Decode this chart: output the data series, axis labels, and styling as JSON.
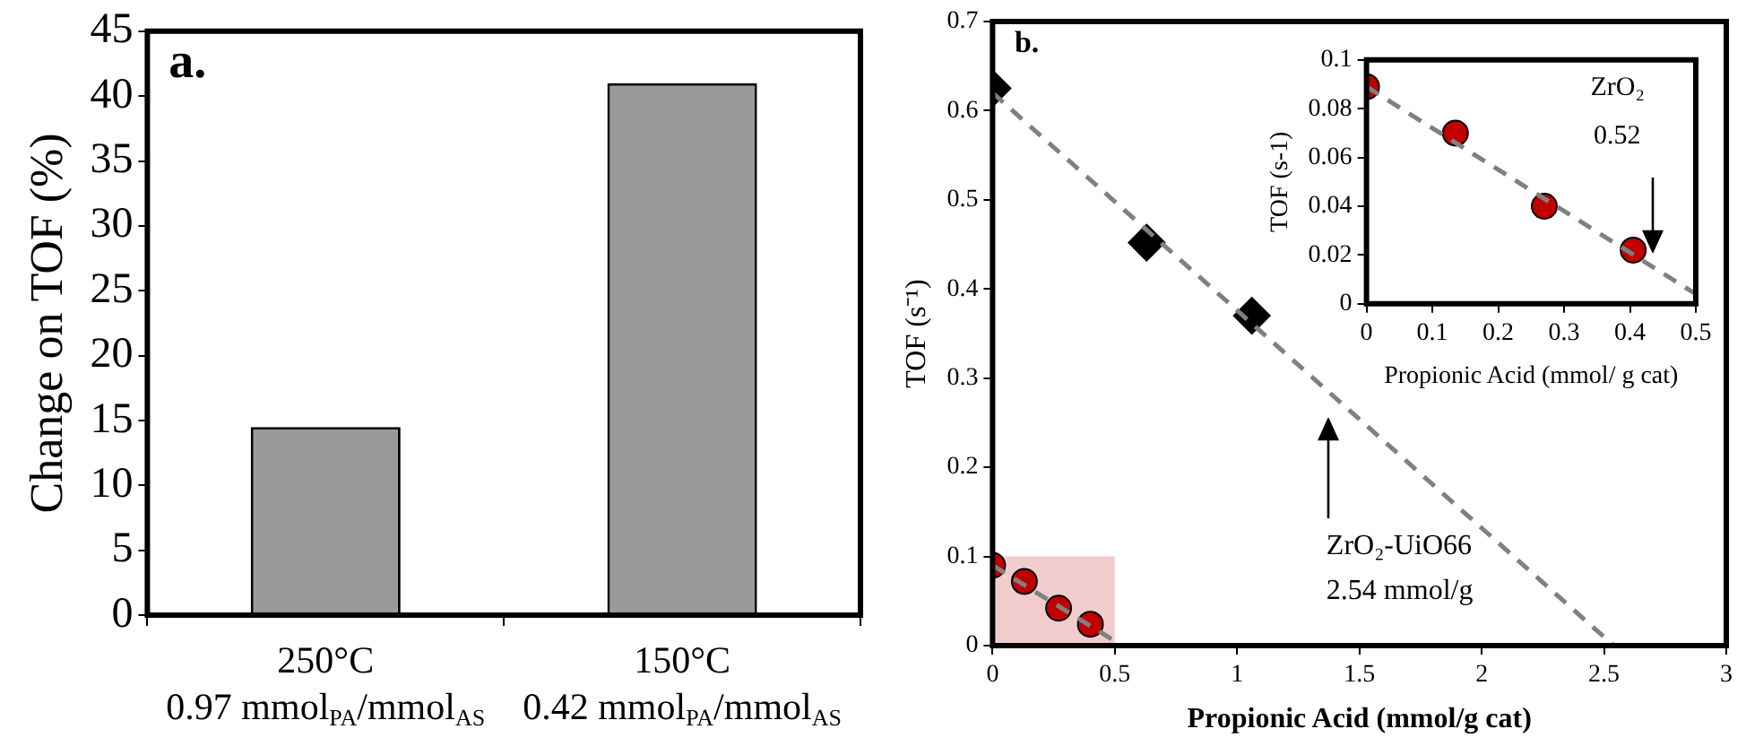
{
  "chart_data": [
    {
      "type": "bar",
      "ylabel": "Change on TOF (%)",
      "categories": [
        "250°C\n0.97 mmol$_{PA}$/mmol$_{AS}$",
        "150°C\n0.42 mmol$_{PA}$/mmol$_{AS}$"
      ],
      "values": [
        14.5,
        41
      ],
      "color": "#9a9a9a",
      "ylim": [
        0,
        45
      ],
      "yticks": [
        0,
        5,
        10,
        15,
        20,
        25,
        30,
        35,
        40,
        45
      ],
      "annotations": [
        "a."
      ]
    },
    {
      "type": "scatter",
      "xlabel": "Propionic Acid (mmol/g cat)",
      "ylabel": "TOF (s⁻¹)",
      "xlim": [
        0,
        3
      ],
      "xticks": [
        0,
        0.5,
        1,
        1.5,
        2,
        2.5,
        3
      ],
      "ylim": [
        0,
        0.7
      ],
      "yticks": [
        0,
        0.1,
        0.2,
        0.3,
        0.4,
        0.5,
        0.6,
        0.7
      ],
      "series": [
        {
          "type": "area",
          "color": "#f2cccc",
          "x": [
            0,
            0.5
          ],
          "values": [
            0.1,
            0.1
          ],
          "marker": "none"
        },
        {
          "type": "line",
          "color": "#808080",
          "x": [
            0,
            2.54
          ],
          "values": [
            0.62,
            0
          ],
          "marker": "none",
          "line_style": "dashed"
        },
        {
          "type": "line",
          "color": "#808080",
          "x": [
            0,
            0.5
          ],
          "values": [
            0.09,
            0.005
          ],
          "marker": "none",
          "line_style": "dashed"
        },
        {
          "color": "#000000",
          "x": [
            0,
            0.63,
            1.06
          ],
          "values": [
            0.625,
            0.452,
            0.37
          ],
          "marker": "diamond"
        },
        {
          "color": "#c00000",
          "x": [
            0,
            0.13,
            0.27,
            0.4
          ],
          "values": [
            0.09,
            0.072,
            0.042,
            0.024
          ],
          "marker": "circle"
        }
      ],
      "annotations": [
        "b.",
        "ZrO₂-UiO66",
        "2.54 mmol/g"
      ]
    },
    {
      "type": "scatter",
      "xlabel": "Propionic Acid (mmol/ g cat)",
      "ylabel": "TOF (s-1)",
      "xlim": [
        0,
        0.5
      ],
      "xticks": [
        0,
        0.1,
        0.2,
        0.3,
        0.4,
        0.5
      ],
      "ylim": [
        0,
        0.1
      ],
      "yticks": [
        0,
        0.02,
        0.04,
        0.06,
        0.08,
        {
          "value": 0.1,
          "label": "0.1"
        }
      ],
      "series": [
        {
          "type": "line",
          "color": "#808080",
          "x": [
            0,
            0.5
          ],
          "values": [
            0.089,
            0.004
          ],
          "marker": "none",
          "line_style": "dashed"
        },
        {
          "color": "#c00000",
          "x": [
            0,
            0.135,
            0.27,
            0.405
          ],
          "values": [
            0.089,
            0.07,
            0.04,
            0.022
          ],
          "marker": "circle"
        }
      ],
      "annotations": [
        "ZrO₂",
        "0.52"
      ]
    }
  ]
}
